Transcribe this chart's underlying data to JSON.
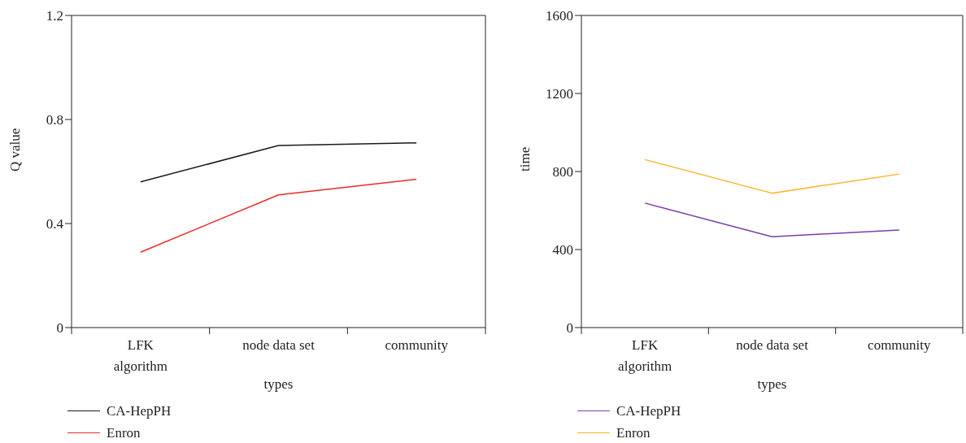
{
  "chart_data": [
    {
      "type": "line",
      "xlabel": "types",
      "ylabel": "Q value",
      "categories": [
        "LFK algorithm",
        "node data set",
        "community"
      ],
      "ylim": [
        0,
        1.2
      ],
      "yticks": [
        0,
        0.4,
        0.8,
        1.2
      ],
      "grid": false,
      "legend": "bottom left",
      "marker": "none",
      "series": [
        {
          "name": "CA-HepPH",
          "color": "#1a1a1a",
          "values": [
            0.56,
            0.7,
            0.71
          ]
        },
        {
          "name": "Enron",
          "color": "#ee2a24",
          "values": [
            0.29,
            0.51,
            0.57
          ]
        }
      ]
    },
    {
      "type": "line",
      "xlabel": "types",
      "ylabel": "time",
      "categories": [
        "LFK algorithm",
        "node data set",
        "community"
      ],
      "ylim": [
        0,
        1600
      ],
      "yticks": [
        0,
        400,
        800,
        1200,
        1600
      ],
      "grid": false,
      "legend": "bottom left",
      "marker": "none",
      "series": [
        {
          "name": "CA-HepPH",
          "color": "#7b3fa8",
          "values": [
            638,
            466,
            500
          ]
        },
        {
          "name": "Enron",
          "color": "#fbb224",
          "values": [
            861,
            689,
            787
          ]
        }
      ]
    }
  ]
}
